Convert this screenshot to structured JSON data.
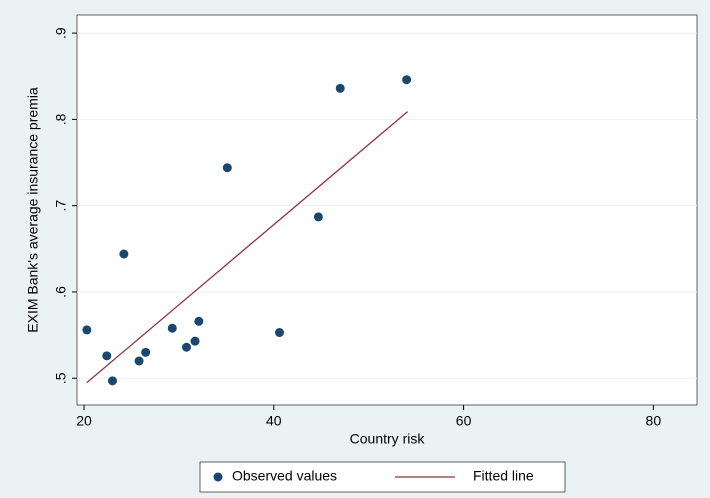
{
  "chart_data": {
    "type": "scatter",
    "x_label": "Country risk",
    "y_label": "EXIM Bank's average insurance premia",
    "xlim": [
      19.26,
      84.6
    ],
    "ylim": [
      0.469,
      0.921
    ],
    "xticks": [
      20,
      40,
      60,
      80
    ],
    "yticks": [
      {
        "value": 0.5,
        "label": ".5"
      },
      {
        "value": 0.6,
        "label": ".6"
      },
      {
        "value": 0.7,
        "label": ".7"
      },
      {
        "value": 0.8,
        "label": ".8"
      },
      {
        "value": 0.9,
        "label": ".9"
      }
    ],
    "grid": true,
    "legend": "bottom",
    "series": [
      {
        "name": "Observed values",
        "type": "scatter",
        "color": "#1a476f",
        "x": [
          20.3,
          22.4,
          23.0,
          24.2,
          25.8,
          26.5,
          29.3,
          30.8,
          31.7,
          32.1,
          35.1,
          40.6,
          44.7,
          47.0,
          54.0
        ],
        "values": [
          0.556,
          0.526,
          0.497,
          0.644,
          0.52,
          0.53,
          0.558,
          0.536,
          0.543,
          0.566,
          0.744,
          0.553,
          0.687,
          0.836,
          0.846
        ]
      },
      {
        "name": "Fitted line",
        "type": "line",
        "color": "#90353b",
        "x": [
          20.3,
          54.1
        ],
        "values": [
          0.495,
          0.809
        ]
      }
    ]
  }
}
